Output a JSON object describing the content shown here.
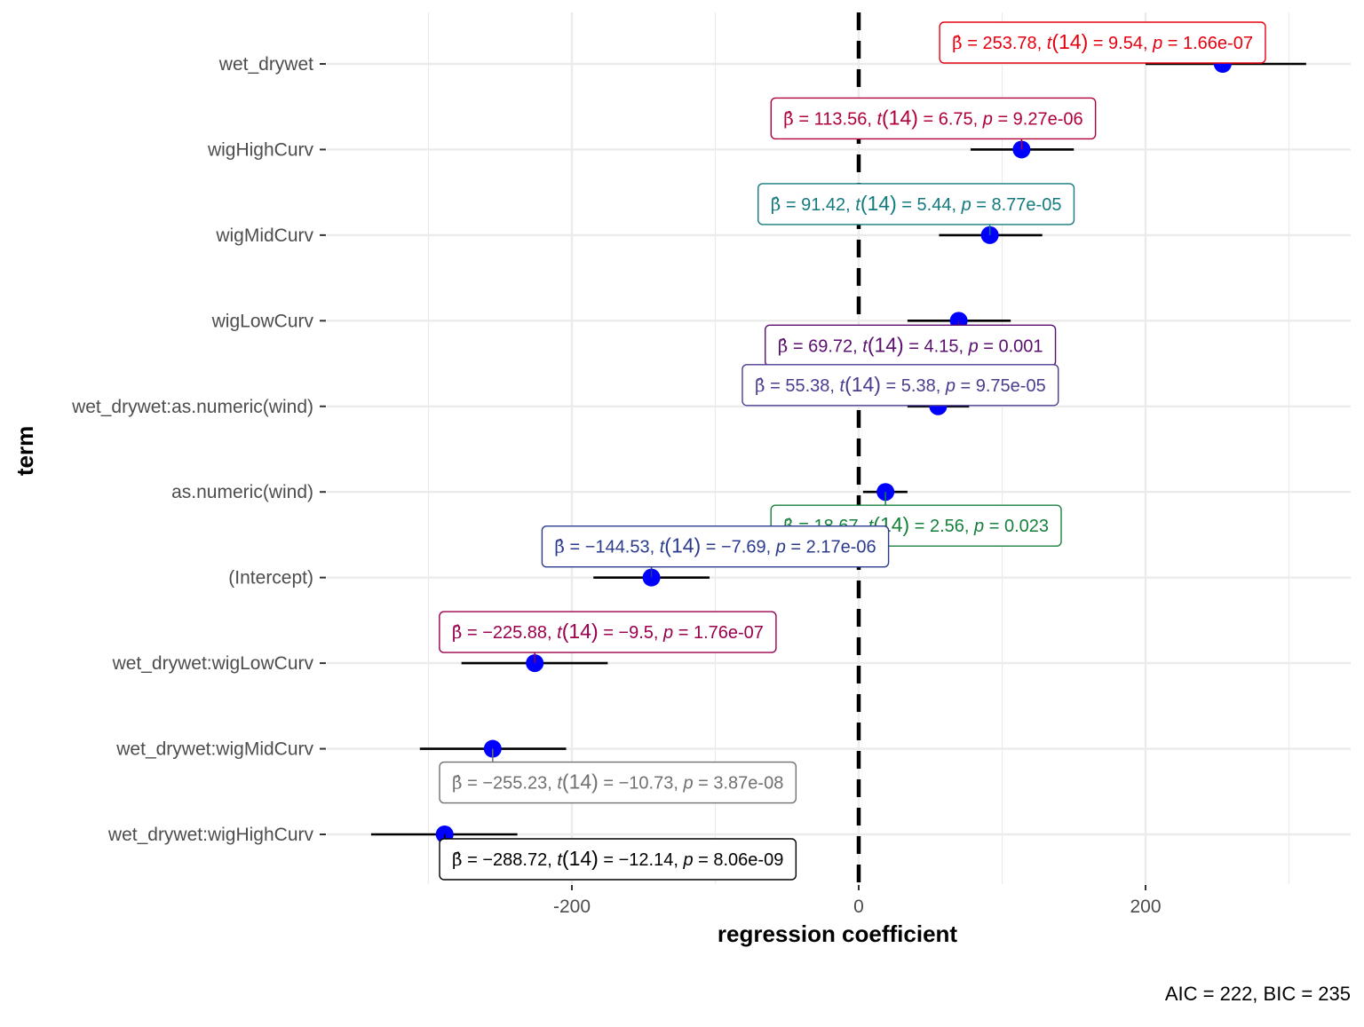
{
  "chart_data": {
    "type": "scatter",
    "subtype": "coefficient-plot",
    "xlabel": "regression coefficient",
    "ylabel": "term",
    "caption": "AIC = 222, BIC = 235",
    "xlim": [
      -370,
      345
    ],
    "x_ticks": [
      -200,
      0,
      200
    ],
    "x_tick_labels": [
      "-200",
      "0",
      "200"
    ],
    "x_minor_gridlines": [
      -300,
      -100,
      100,
      300
    ],
    "reference_line": 0,
    "grid": true,
    "point_color": "#0000FF",
    "terms": [
      {
        "term": "wet_drywet",
        "estimate": 253.78,
        "conf_low": 200,
        "conf_high": 312,
        "label": {
          "beta": "253.78",
          "df": "14",
          "t": "9.54",
          "p": "1.66e-07"
        },
        "label_color": "#E6000F"
      },
      {
        "term": "wigHighCurv",
        "estimate": 113.56,
        "conf_low": 78,
        "conf_high": 150,
        "label": {
          "beta": "113.56",
          "df": "14",
          "t": "6.75",
          "p": "9.27e-06"
        },
        "label_color": "#B0003A"
      },
      {
        "term": "wigMidCurv",
        "estimate": 91.42,
        "conf_low": 56,
        "conf_high": 128,
        "label": {
          "beta": "91.42",
          "df": "14",
          "t": "5.44",
          "p": "8.77e-05"
        },
        "label_color": "#137A7F"
      },
      {
        "term": "wigLowCurv",
        "estimate": 69.72,
        "conf_low": 34,
        "conf_high": 106,
        "label": {
          "beta": "69.72",
          "df": "14",
          "t": "4.15",
          "p": "0.001"
        },
        "label_color": "#5A0F6E"
      },
      {
        "term": "wet_drywet:as.numeric(wind)",
        "estimate": 55.38,
        "conf_low": 34,
        "conf_high": 77,
        "label": {
          "beta": "55.38",
          "df": "14",
          "t": "5.38",
          "p": "9.75e-05"
        },
        "label_color": "#4B3C8F"
      },
      {
        "term": "as.numeric(wind)",
        "estimate": 18.67,
        "conf_low": 3,
        "conf_high": 34,
        "label": {
          "beta": "18.67",
          "df": "14",
          "t": "2.56",
          "p": "0.023"
        },
        "label_color": "#17813C"
      },
      {
        "term": "(Intercept)",
        "estimate": -144.53,
        "conf_low": -185,
        "conf_high": -104,
        "label": {
          "beta": "−144.53",
          "df": "14",
          "t": "−7.69",
          "p": "2.17e-06"
        },
        "label_color": "#2B3A8C"
      },
      {
        "term": "wet_drywet:wigLowCurv",
        "estimate": -225.88,
        "conf_low": -277,
        "conf_high": -175,
        "label": {
          "beta": "−225.88",
          "df": "14",
          "t": "−9.5",
          "p": "1.76e-07"
        },
        "label_color": "#99004D"
      },
      {
        "term": "wet_drywet:wigMidCurv",
        "estimate": -255.23,
        "conf_low": -306,
        "conf_high": -204,
        "label": {
          "beta": "−255.23",
          "df": "14",
          "t": "−10.73",
          "p": "3.87e-08"
        },
        "label_color": "#707070"
      },
      {
        "term": "wet_drywet:wigHighCurv",
        "estimate": -288.72,
        "conf_low": -340,
        "conf_high": -238,
        "label": {
          "beta": "−288.72",
          "df": "14",
          "t": "−12.14",
          "p": "8.06e-09"
        },
        "label_color": "#000000"
      }
    ]
  }
}
